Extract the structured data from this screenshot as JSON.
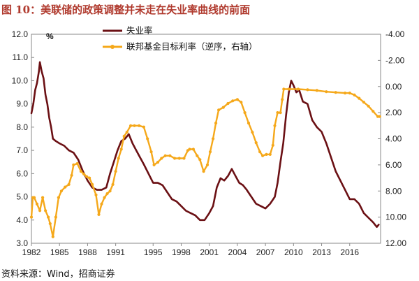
{
  "figure": {
    "title": "图 10：美联储的政策调整并未走在失业率曲线的前面",
    "source": "资料来源：Wind，招商证券"
  },
  "chart_data": {
    "type": "line",
    "xlim": [
      1982,
      2019.3
    ],
    "x_ticks": [
      1982,
      1985,
      1988,
      1991,
      1995,
      1998,
      2001,
      2004,
      2007,
      2010,
      2013,
      2016
    ],
    "y_left": {
      "unit": "%",
      "lim": [
        3.0,
        12.0
      ],
      "ticks": [
        "12.0",
        "11.0",
        "10.0",
        "9.0",
        "8.0",
        "7.0",
        "6.0",
        "5.0",
        "4.0",
        "3.0"
      ]
    },
    "y_right": {
      "reversed": true,
      "lim": [
        -4.0,
        12.0
      ],
      "ticks": [
        "-4.00",
        "-2.00",
        "0.00",
        "2.00",
        "4.00",
        "6.00",
        "8.00",
        "10.00",
        "12.00"
      ]
    },
    "legend": {
      "position": "top-center"
    },
    "series": [
      {
        "name": "失业率",
        "axis": "left",
        "color": "#6b1014",
        "points": [
          [
            1982.0,
            8.6
          ],
          [
            1982.2,
            9.0
          ],
          [
            1982.4,
            9.6
          ],
          [
            1982.6,
            9.9
          ],
          [
            1982.8,
            10.4
          ],
          [
            1982.9,
            10.8
          ],
          [
            1983.1,
            10.4
          ],
          [
            1983.3,
            10.1
          ],
          [
            1983.5,
            9.4
          ],
          [
            1983.7,
            9.0
          ],
          [
            1983.9,
            8.4
          ],
          [
            1984.1,
            8.0
          ],
          [
            1984.3,
            7.5
          ],
          [
            1984.6,
            7.4
          ],
          [
            1985.0,
            7.3
          ],
          [
            1985.5,
            7.2
          ],
          [
            1986.0,
            7.0
          ],
          [
            1986.5,
            6.9
          ],
          [
            1987.0,
            6.6
          ],
          [
            1987.5,
            6.1
          ],
          [
            1988.0,
            5.7
          ],
          [
            1988.5,
            5.4
          ],
          [
            1989.0,
            5.3
          ],
          [
            1989.5,
            5.3
          ],
          [
            1990.0,
            5.4
          ],
          [
            1990.4,
            6.0
          ],
          [
            1990.8,
            6.5
          ],
          [
            1991.2,
            7.0
          ],
          [
            1991.6,
            7.4
          ],
          [
            1992.0,
            7.5
          ],
          [
            1992.4,
            7.7
          ],
          [
            1992.8,
            7.3
          ],
          [
            1993.2,
            7.0
          ],
          [
            1993.6,
            6.7
          ],
          [
            1994.0,
            6.4
          ],
          [
            1994.5,
            6.0
          ],
          [
            1995.0,
            5.6
          ],
          [
            1995.5,
            5.6
          ],
          [
            1996.0,
            5.5
          ],
          [
            1996.5,
            5.2
          ],
          [
            1997.0,
            4.9
          ],
          [
            1997.5,
            4.8
          ],
          [
            1998.0,
            4.6
          ],
          [
            1998.5,
            4.4
          ],
          [
            1999.0,
            4.3
          ],
          [
            1999.5,
            4.2
          ],
          [
            2000.0,
            4.0
          ],
          [
            2000.5,
            4.0
          ],
          [
            2001.0,
            4.3
          ],
          [
            2001.4,
            4.6
          ],
          [
            2001.8,
            5.4
          ],
          [
            2002.2,
            5.8
          ],
          [
            2002.6,
            5.7
          ],
          [
            2003.0,
            5.9
          ],
          [
            2003.4,
            6.2
          ],
          [
            2003.8,
            5.9
          ],
          [
            2004.2,
            5.6
          ],
          [
            2004.6,
            5.5
          ],
          [
            2005.0,
            5.3
          ],
          [
            2005.5,
            5.0
          ],
          [
            2006.0,
            4.7
          ],
          [
            2006.5,
            4.6
          ],
          [
            2007.0,
            4.5
          ],
          [
            2007.5,
            4.7
          ],
          [
            2008.0,
            5.0
          ],
          [
            2008.3,
            5.6
          ],
          [
            2008.6,
            6.5
          ],
          [
            2008.9,
            7.3
          ],
          [
            2009.2,
            8.5
          ],
          [
            2009.5,
            9.5
          ],
          [
            2009.75,
            10.0
          ],
          [
            2010.0,
            9.8
          ],
          [
            2010.3,
            9.5
          ],
          [
            2010.6,
            9.6
          ],
          [
            2011.0,
            9.1
          ],
          [
            2011.5,
            9.0
          ],
          [
            2012.0,
            8.3
          ],
          [
            2012.5,
            8.0
          ],
          [
            2013.0,
            7.8
          ],
          [
            2013.5,
            7.3
          ],
          [
            2014.0,
            6.7
          ],
          [
            2014.5,
            6.1
          ],
          [
            2015.0,
            5.7
          ],
          [
            2015.5,
            5.3
          ],
          [
            2016.0,
            4.9
          ],
          [
            2016.5,
            4.9
          ],
          [
            2017.0,
            4.7
          ],
          [
            2017.5,
            4.3
          ],
          [
            2018.0,
            4.1
          ],
          [
            2018.5,
            3.9
          ],
          [
            2018.9,
            3.7
          ],
          [
            2019.1,
            3.8
          ]
        ]
      },
      {
        "name": "联邦基金目标利率（逆序，右轴）",
        "axis": "right",
        "color": "#f5a81a",
        "points": [
          [
            1982.0,
            10.0
          ],
          [
            1982.15,
            8.5
          ],
          [
            1982.3,
            8.5
          ],
          [
            1982.6,
            9.0
          ],
          [
            1982.9,
            9.5
          ],
          [
            1983.2,
            8.5
          ],
          [
            1983.5,
            9.5
          ],
          [
            1983.8,
            10.0
          ],
          [
            1984.0,
            10.5
          ],
          [
            1984.3,
            11.5
          ],
          [
            1984.6,
            10.0
          ],
          [
            1984.9,
            8.5
          ],
          [
            1985.2,
            8.0
          ],
          [
            1985.6,
            7.7
          ],
          [
            1986.0,
            7.5
          ],
          [
            1986.3,
            6.8
          ],
          [
            1986.5,
            6.0
          ],
          [
            1986.9,
            5.9
          ],
          [
            1987.3,
            6.5
          ],
          [
            1987.6,
            6.7
          ],
          [
            1987.9,
            6.9
          ],
          [
            1988.2,
            7.0
          ],
          [
            1988.5,
            7.5
          ],
          [
            1988.9,
            8.3
          ],
          [
            1989.2,
            9.8
          ],
          [
            1989.5,
            9.0
          ],
          [
            1989.8,
            8.5
          ],
          [
            1990.1,
            8.2
          ],
          [
            1990.4,
            8.0
          ],
          [
            1990.7,
            7.5
          ],
          [
            1991.0,
            6.5
          ],
          [
            1991.3,
            5.5
          ],
          [
            1991.6,
            4.8
          ],
          [
            1991.9,
            3.8
          ],
          [
            1992.2,
            3.5
          ],
          [
            1992.6,
            3.0
          ],
          [
            1993.0,
            3.0
          ],
          [
            1993.5,
            3.0
          ],
          [
            1994.0,
            3.1
          ],
          [
            1994.4,
            4.0
          ],
          [
            1994.8,
            5.0
          ],
          [
            1995.1,
            6.0
          ],
          [
            1995.5,
            5.8
          ],
          [
            1995.9,
            5.5
          ],
          [
            1996.3,
            5.3
          ],
          [
            1996.8,
            5.3
          ],
          [
            1997.3,
            5.5
          ],
          [
            1997.8,
            5.5
          ],
          [
            1998.3,
            5.5
          ],
          [
            1998.7,
            4.9
          ],
          [
            1998.9,
            4.8
          ],
          [
            1999.3,
            4.8
          ],
          [
            1999.7,
            5.3
          ],
          [
            2000.0,
            5.6
          ],
          [
            2000.4,
            6.5
          ],
          [
            2000.8,
            6.0
          ],
          [
            2001.1,
            5.0
          ],
          [
            2001.4,
            4.0
          ],
          [
            2001.7,
            2.8
          ],
          [
            2002.0,
            1.8
          ],
          [
            2002.5,
            1.6
          ],
          [
            2003.0,
            1.3
          ],
          [
            2003.5,
            1.1
          ],
          [
            2004.0,
            1.0
          ],
          [
            2004.4,
            1.2
          ],
          [
            2004.8,
            2.0
          ],
          [
            2005.2,
            2.8
          ],
          [
            2005.6,
            3.5
          ],
          [
            2006.0,
            4.3
          ],
          [
            2006.4,
            5.0
          ],
          [
            2006.7,
            5.3
          ],
          [
            2007.1,
            5.2
          ],
          [
            2007.5,
            5.2
          ],
          [
            2007.8,
            4.5
          ],
          [
            2008.0,
            3.0
          ],
          [
            2008.3,
            2.0
          ],
          [
            2008.6,
            2.0
          ],
          [
            2008.8,
            1.0
          ],
          [
            2008.95,
            0.2
          ],
          [
            2009.5,
            0.2
          ],
          [
            2010.5,
            0.2
          ],
          [
            2011.5,
            0.25
          ],
          [
            2012.5,
            0.3
          ],
          [
            2013.5,
            0.4
          ],
          [
            2014.5,
            0.45
          ],
          [
            2015.5,
            0.5
          ],
          [
            2016.0,
            0.5
          ],
          [
            2016.5,
            0.65
          ],
          [
            2017.0,
            0.9
          ],
          [
            2017.5,
            1.2
          ],
          [
            2018.0,
            1.5
          ],
          [
            2018.5,
            1.9
          ],
          [
            2019.0,
            2.3
          ],
          [
            2019.2,
            2.3
          ]
        ]
      }
    ]
  }
}
